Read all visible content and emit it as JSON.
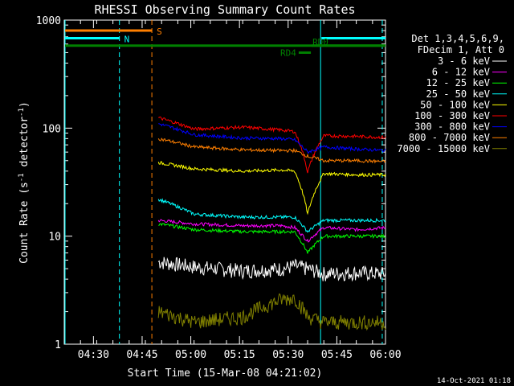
{
  "chart_data": {
    "type": "line",
    "title": "RHESSI Observing Summary Count Rates",
    "xlabel": "Start Time (15-Mar-08 04:21:02)",
    "ylabel_parts": [
      "Count Rate (s",
      "-1",
      " detector",
      "-1",
      ")"
    ],
    "yscale": "log",
    "ylim": [
      1,
      1000
    ],
    "xlim_minutes": [
      0,
      99
    ],
    "x_ticks": [
      {
        "m": 9,
        "label": "04:30"
      },
      {
        "m": 24,
        "label": "04:45"
      },
      {
        "m": 39,
        "label": "05:00"
      },
      {
        "m": 54,
        "label": "05:15"
      },
      {
        "m": 69,
        "label": "05:30"
      },
      {
        "m": 84,
        "label": "05:45"
      },
      {
        "m": 99,
        "label": "06:00"
      }
    ],
    "y_ticks": [
      {
        "v": 1,
        "label": "1"
      },
      {
        "v": 10,
        "label": "10"
      },
      {
        "v": 100,
        "label": "100"
      },
      {
        "v": 1000,
        "label": "1000"
      }
    ],
    "legend_header": [
      "Det 1,3,4,5,6,9,",
      "FDecim 1, Att 0"
    ],
    "legend_placement": "right",
    "series": [
      {
        "name": "3 - 6 keV",
        "color": "#ffffff",
        "x": [
          29,
          40,
          55,
          67,
          71,
          75,
          80,
          90,
          99
        ],
        "y": [
          5.8,
          5.2,
          4.8,
          5.0,
          5.3,
          5.0,
          4.5,
          4.6,
          4.5
        ]
      },
      {
        "name": "6 - 12 keV",
        "color": "#ff00ff",
        "x": [
          29,
          40,
          55,
          67,
          71,
          75,
          80,
          90,
          99
        ],
        "y": [
          14,
          13,
          12.5,
          12.5,
          12,
          9,
          12,
          11.5,
          12
        ]
      },
      {
        "name": "12 - 25 keV",
        "color": "#00ff00",
        "x": [
          29,
          40,
          55,
          67,
          71,
          75,
          80,
          90,
          99
        ],
        "y": [
          13,
          11.5,
          11,
          11,
          11,
          7,
          10,
          10,
          10
        ]
      },
      {
        "name": "25 - 50 keV",
        "color": "#00ffff",
        "x": [
          29,
          40,
          55,
          67,
          71,
          75,
          80,
          90,
          99
        ],
        "y": [
          22,
          16,
          15,
          15,
          15,
          11,
          14,
          14,
          14
        ]
      },
      {
        "name": "50 - 100 keV",
        "color": "#ffff00",
        "x": [
          29,
          40,
          55,
          67,
          71,
          75,
          80,
          90,
          99
        ],
        "y": [
          48,
          42,
          40,
          41,
          40,
          16,
          38,
          37,
          37
        ]
      },
      {
        "name": "100 - 300 keV",
        "color": "#ff0000",
        "x": [
          29,
          40,
          55,
          67,
          71,
          75,
          80,
          90,
          99
        ],
        "y": [
          125,
          98,
          102,
          96,
          93,
          39,
          85,
          84,
          82
        ]
      },
      {
        "name": "300 - 800 keV",
        "color": "#0000ff",
        "x": [
          29,
          40,
          55,
          67,
          71,
          75,
          80,
          90,
          99
        ],
        "y": [
          110,
          87,
          81,
          80,
          78,
          60,
          67,
          64,
          62
        ]
      },
      {
        "name": "800 - 7000 keV",
        "color": "#ff7f00",
        "x": [
          29,
          40,
          55,
          67,
          71,
          75,
          80,
          90,
          99
        ],
        "y": [
          80,
          67,
          63,
          62,
          62,
          55,
          50,
          50,
          49
        ]
      },
      {
        "name": "7000 - 15000 keV",
        "color": "#7f7f00",
        "x": [
          29,
          40,
          55,
          67,
          71,
          75,
          80,
          90,
          99
        ],
        "y": [
          2.0,
          1.6,
          1.8,
          2.6,
          2.7,
          1.8,
          1.6,
          1.6,
          1.6
        ]
      }
    ],
    "flag_bars": [
      {
        "label": "S",
        "color": "#ff7f00",
        "x_start": 0,
        "x_end": 27,
        "y": 800
      },
      {
        "label": "N",
        "color": "#00ffff",
        "x_start": 0,
        "x_end": 17,
        "y": 680
      },
      {
        "label": "",
        "color": "#00ffff",
        "x_start": 79,
        "x_end": 99,
        "y": 680
      },
      {
        "label": "",
        "color": "#008000",
        "x_start": 0,
        "x_end": 99,
        "y": 580
      },
      {
        "label": "RD4",
        "color": "#008000",
        "x_start": 72,
        "x_end": 76,
        "y": 500
      },
      {
        "label": "RD0",
        "color": "#008000",
        "x_start": 76,
        "x_end": 99,
        "y": 580
      }
    ],
    "vertical_lines": [
      {
        "x": 0,
        "color": "#00ffff",
        "style": "solid"
      },
      {
        "x": 17,
        "color": "#00ffff",
        "style": "dashed"
      },
      {
        "x": 27,
        "color": "#ff7f00",
        "style": "dashed"
      },
      {
        "x": 79,
        "color": "#00ffff",
        "style": "solid"
      },
      {
        "x": 98,
        "color": "#00ffff",
        "style": "dashed"
      }
    ]
  },
  "footer_timestamp": "14-Oct-2021 01:18"
}
